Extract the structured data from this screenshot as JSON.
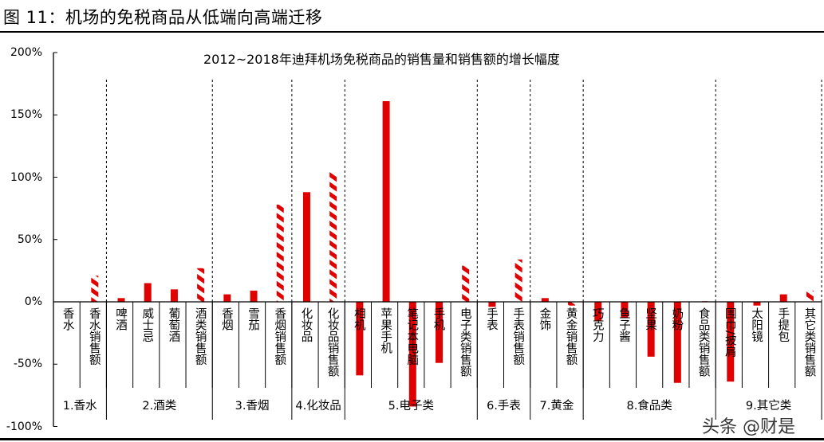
{
  "figure_title": "图  11：机场的免税商品从低端向高端迁移",
  "watermark": "头条 @财是",
  "colors": {
    "bar": "#e00000",
    "hatch": "#e00000",
    "axis": "#000000"
  },
  "chart_data": {
    "type": "bar",
    "title": "2012~2018年迪拜机场免税商品的销售量和销售额的增长幅度",
    "xlabel": "",
    "ylabel": "",
    "ylim": [
      -100,
      200
    ],
    "yticks": [
      "200%",
      "150%",
      "100%",
      "50%",
      "0%",
      "-50%",
      "-100%"
    ],
    "grid": false,
    "legend": "none",
    "unit": "%",
    "categories": [
      "香水",
      "香水销售额",
      "啤酒",
      "威士忌",
      "葡萄酒",
      "酒类销售额",
      "香烟",
      "雪茄",
      "香烟销售额",
      "化妆品",
      "化妆品销售额",
      "相机",
      "苹果手机",
      "笔记本电脑",
      "手机",
      "电子类销售额",
      "手表",
      "手表销售额",
      "金饰",
      "黄金销售额",
      "巧克力",
      "鱼子酱",
      "坚果",
      "奶粉",
      "食品类销售额",
      "围巾/披肩",
      "太阳镜",
      "手提包",
      "其它类销售额"
    ],
    "values": [
      0,
      21,
      3,
      15,
      10,
      27,
      6,
      9,
      78,
      88,
      104,
      -59,
      161,
      -84,
      -49,
      29,
      -4,
      34,
      3,
      -3,
      -15,
      -13,
      -44,
      -65,
      0.5,
      -64,
      -3,
      6,
      9
    ],
    "styles": [
      "solid",
      "hatched",
      "solid",
      "solid",
      "solid",
      "hatched",
      "solid",
      "solid",
      "hatched",
      "solid",
      "hatched",
      "solid",
      "solid",
      "solid",
      "solid",
      "hatched",
      "solid",
      "hatched",
      "solid",
      "hatched",
      "solid",
      "solid",
      "solid",
      "solid",
      "hatched",
      "solid",
      "solid",
      "solid",
      "hatched"
    ],
    "groups": [
      {
        "label": "1.香水",
        "count": 2
      },
      {
        "label": "2.酒类",
        "count": 4
      },
      {
        "label": "3.香烟",
        "count": 3
      },
      {
        "label": "4.化妆品",
        "count": 2
      },
      {
        "label": "5.电子类",
        "count": 5
      },
      {
        "label": "6.手表",
        "count": 2
      },
      {
        "label": "7.黄金",
        "count": 2
      },
      {
        "label": "8.食品类",
        "count": 5
      },
      {
        "label": "9.其它类",
        "count": 4
      }
    ]
  }
}
